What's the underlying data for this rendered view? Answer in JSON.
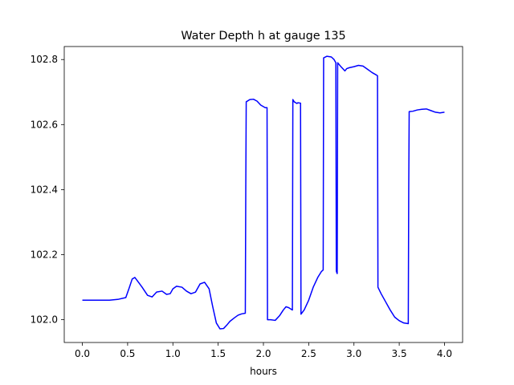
{
  "chart_data": {
    "type": "line",
    "title": "Water Depth h at gauge 135",
    "xlabel": "hours",
    "ylabel": "",
    "xlim": [
      -0.2,
      4.2
    ],
    "ylim": [
      101.93,
      102.84
    ],
    "xticks": [
      0.0,
      0.5,
      1.0,
      1.5,
      2.0,
      2.5,
      3.0,
      3.5,
      4.0
    ],
    "xtick_labels": [
      "0.0",
      "0.5",
      "1.0",
      "1.5",
      "2.0",
      "2.5",
      "3.0",
      "3.5",
      "4.0"
    ],
    "yticks": [
      102.0,
      102.2,
      102.4,
      102.6,
      102.8
    ],
    "ytick_labels": [
      "102.0",
      "102.2",
      "102.4",
      "102.6",
      "102.8"
    ],
    "grid": false,
    "series": [
      {
        "color": "#0000ff",
        "x": [
          0.0,
          0.2,
          0.3,
          0.4,
          0.48,
          0.52,
          0.55,
          0.58,
          0.62,
          0.66,
          0.72,
          0.77,
          0.82,
          0.88,
          0.93,
          0.97,
          1.0,
          1.04,
          1.1,
          1.15,
          1.2,
          1.25,
          1.3,
          1.35,
          1.4,
          1.44,
          1.48,
          1.52,
          1.56,
          1.6,
          1.63,
          1.68,
          1.72,
          1.76,
          1.8,
          1.805,
          1.81,
          1.85,
          1.89,
          1.93,
          1.97,
          2.02,
          2.04,
          2.045,
          2.08,
          2.13,
          2.18,
          2.22,
          2.25,
          2.28,
          2.32,
          2.325,
          2.34,
          2.37,
          2.38,
          2.41,
          2.415,
          2.45,
          2.5,
          2.55,
          2.6,
          2.64,
          2.66,
          2.665,
          2.7,
          2.75,
          2.78,
          2.8,
          2.805,
          2.81,
          2.815,
          2.82,
          2.85,
          2.9,
          2.92,
          2.95,
          3.0,
          3.05,
          3.1,
          3.15,
          3.2,
          3.25,
          3.26,
          3.265,
          3.3,
          3.35,
          3.4,
          3.45,
          3.5,
          3.55,
          3.6,
          3.605,
          3.61,
          3.65,
          3.7,
          3.75,
          3.8,
          3.85,
          3.9,
          3.95,
          4.0
        ],
        "y": [
          102.06,
          102.06,
          102.06,
          102.063,
          102.068,
          102.1,
          102.125,
          102.13,
          102.115,
          102.1,
          102.075,
          102.07,
          102.085,
          102.088,
          102.078,
          102.08,
          102.095,
          102.103,
          102.1,
          102.088,
          102.08,
          102.085,
          102.11,
          102.115,
          102.095,
          102.04,
          101.99,
          101.972,
          101.973,
          101.985,
          101.995,
          102.006,
          102.014,
          102.018,
          102.02,
          102.4,
          102.67,
          102.677,
          102.678,
          102.672,
          102.66,
          102.652,
          102.652,
          102.0,
          102.0,
          101.998,
          102.013,
          102.03,
          102.04,
          102.037,
          102.03,
          102.677,
          102.67,
          102.665,
          102.667,
          102.666,
          102.017,
          102.03,
          102.06,
          102.1,
          102.13,
          102.148,
          102.153,
          102.805,
          102.81,
          102.808,
          102.8,
          102.79,
          102.15,
          102.145,
          102.142,
          102.79,
          102.78,
          102.765,
          102.772,
          102.775,
          102.778,
          102.782,
          102.78,
          102.77,
          102.76,
          102.752,
          102.75,
          102.1,
          102.08,
          102.055,
          102.03,
          102.008,
          101.997,
          101.99,
          101.988,
          102.4,
          102.64,
          102.641,
          102.645,
          102.647,
          102.648,
          102.643,
          102.638,
          102.636,
          102.638
        ]
      }
    ]
  }
}
